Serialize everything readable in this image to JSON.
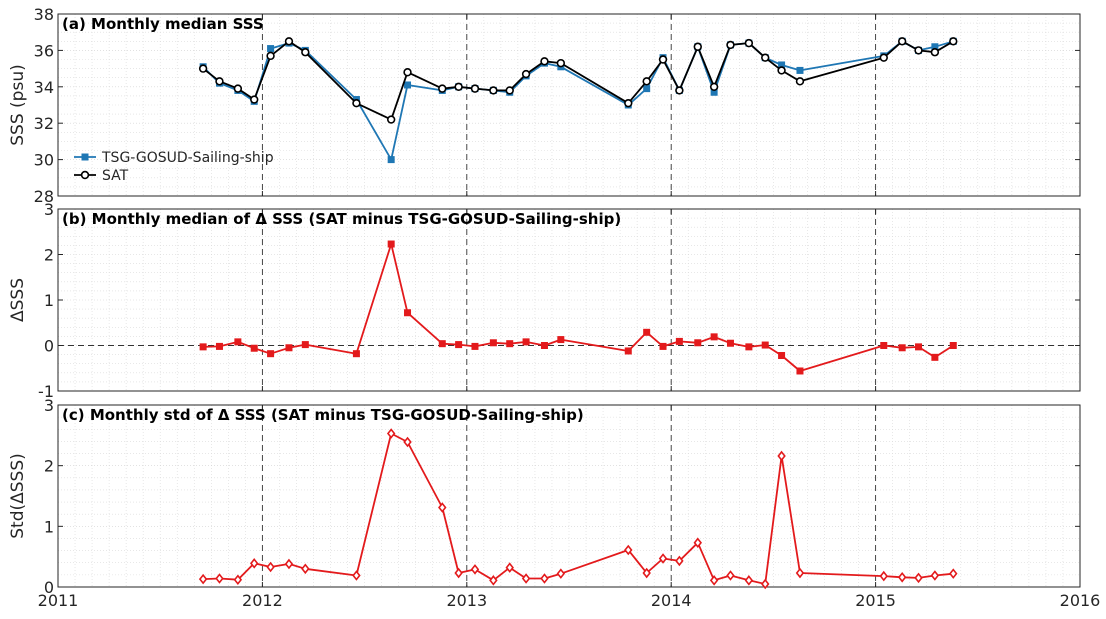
{
  "chart_data": [
    {
      "type": "line",
      "title": "(a) Monthly median SSS",
      "ylabel": "SSS (psu)",
      "ylim": [
        28,
        38
      ],
      "yticks": [
        28,
        30,
        32,
        34,
        36,
        38
      ],
      "xlim": [
        2011,
        2016
      ],
      "xticks": [
        "2011",
        "2012",
        "2013",
        "2014",
        "2015",
        "2016"
      ],
      "grid": true,
      "legend_position": "left",
      "series": [
        {
          "name": "TSG-GOSUD-Sailing-ship",
          "color": "#1f77b4",
          "marker": "square",
          "x": [
            2011.71,
            2011.79,
            2011.88,
            2011.96,
            2012.04,
            2012.13,
            2012.21,
            2012.46,
            2012.63,
            2012.71,
            2012.88,
            2012.96,
            2013.04,
            2013.13,
            2013.21,
            2013.29,
            2013.38,
            2013.46,
            2013.79,
            2013.88,
            2013.96,
            2014.04,
            2014.13,
            2014.21,
            2014.29,
            2014.38,
            2014.46,
            2014.54,
            2014.63,
            2015.04,
            2015.13,
            2015.21,
            2015.29,
            2015.38
          ],
          "y": [
            35.1,
            34.2,
            33.8,
            33.2,
            36.1,
            36.4,
            36.0,
            33.3,
            30.0,
            34.1,
            33.8,
            34.0,
            33.9,
            33.8,
            33.7,
            34.6,
            35.3,
            35.1,
            33.0,
            33.9,
            35.6,
            33.8,
            36.2,
            33.7,
            36.3,
            36.4,
            35.6,
            35.2,
            34.9,
            35.7,
            36.5,
            36.0,
            36.2,
            36.5
          ]
        },
        {
          "name": "SAT",
          "color": "#000000",
          "marker": "circle",
          "x": [
            2011.71,
            2011.79,
            2011.88,
            2011.96,
            2012.04,
            2012.13,
            2012.21,
            2012.46,
            2012.63,
            2012.71,
            2012.88,
            2012.96,
            2013.04,
            2013.13,
            2013.21,
            2013.29,
            2013.38,
            2013.46,
            2013.79,
            2013.88,
            2013.96,
            2014.04,
            2014.13,
            2014.21,
            2014.29,
            2014.38,
            2014.46,
            2014.54,
            2014.63,
            2015.04,
            2015.13,
            2015.21,
            2015.29,
            2015.38
          ],
          "y": [
            35.0,
            34.3,
            33.9,
            33.3,
            35.7,
            36.5,
            35.9,
            33.1,
            32.2,
            34.8,
            33.9,
            34.0,
            33.9,
            33.8,
            33.8,
            34.7,
            35.4,
            35.3,
            33.1,
            34.3,
            35.5,
            33.8,
            36.2,
            34.0,
            36.3,
            36.4,
            35.6,
            34.9,
            34.3,
            35.6,
            36.5,
            36.0,
            35.9,
            36.5
          ]
        }
      ]
    },
    {
      "type": "line",
      "title": "(b) Monthly median of Δ SSS (SAT minus TSG-GOSUD-Sailing-ship)",
      "ylabel": "ΔSSS",
      "ylim": [
        -1,
        3
      ],
      "yticks": [
        -1,
        0,
        1,
        2,
        3
      ],
      "xlim": [
        2011,
        2016
      ],
      "xticks": [
        "2011",
        "2012",
        "2013",
        "2014",
        "2015",
        "2016"
      ],
      "grid": true,
      "reference_line": 0,
      "series": [
        {
          "color": "#e31a1c",
          "marker": "square",
          "x": [
            2011.71,
            2011.79,
            2011.88,
            2011.96,
            2012.04,
            2012.13,
            2012.21,
            2012.46,
            2012.63,
            2012.71,
            2012.88,
            2012.96,
            2013.04,
            2013.13,
            2013.21,
            2013.29,
            2013.38,
            2013.46,
            2013.79,
            2013.88,
            2013.96,
            2014.04,
            2014.13,
            2014.21,
            2014.29,
            2014.38,
            2014.46,
            2014.54,
            2014.63,
            2015.04,
            2015.13,
            2015.21,
            2015.29,
            2015.38
          ],
          "y": [
            -0.03,
            -0.02,
            0.08,
            -0.06,
            -0.18,
            -0.05,
            0.02,
            -0.18,
            2.23,
            0.72,
            0.04,
            0.02,
            -0.02,
            0.06,
            0.04,
            0.08,
            0.0,
            0.13,
            -0.12,
            0.29,
            -0.02,
            0.09,
            0.06,
            0.19,
            0.05,
            -0.03,
            0.01,
            -0.22,
            -0.56,
            0.0,
            -0.05,
            -0.03,
            -0.26,
            0.0
          ]
        }
      ]
    },
    {
      "type": "line",
      "title": "(c) Monthly std of Δ SSS (SAT minus TSG-GOSUD-Sailing-ship)",
      "ylabel": "Std(ΔSSS)",
      "ylim": [
        0,
        3
      ],
      "yticks": [
        0,
        1,
        2,
        3
      ],
      "xlim": [
        2011,
        2016
      ],
      "xticks": [
        "2011",
        "2012",
        "2013",
        "2014",
        "2015",
        "2016"
      ],
      "grid": true,
      "series": [
        {
          "color": "#e31a1c",
          "marker": "diamond",
          "x": [
            2011.71,
            2011.79,
            2011.88,
            2011.96,
            2012.04,
            2012.13,
            2012.21,
            2012.46,
            2012.63,
            2012.71,
            2012.88,
            2012.96,
            2013.04,
            2013.13,
            2013.21,
            2013.29,
            2013.38,
            2013.46,
            2013.79,
            2013.88,
            2013.96,
            2014.04,
            2014.13,
            2014.21,
            2014.29,
            2014.38,
            2014.46,
            2014.54,
            2014.63,
            2015.04,
            2015.13,
            2015.21,
            2015.29,
            2015.38
          ],
          "y": [
            0.13,
            0.14,
            0.12,
            0.39,
            0.33,
            0.38,
            0.3,
            0.19,
            2.53,
            2.39,
            1.31,
            0.23,
            0.29,
            0.11,
            0.32,
            0.14,
            0.14,
            0.22,
            0.61,
            0.23,
            0.47,
            0.43,
            0.73,
            0.11,
            0.19,
            0.11,
            0.05,
            2.16,
            0.23,
            0.18,
            0.16,
            0.15,
            0.19,
            0.22
          ]
        }
      ]
    }
  ]
}
